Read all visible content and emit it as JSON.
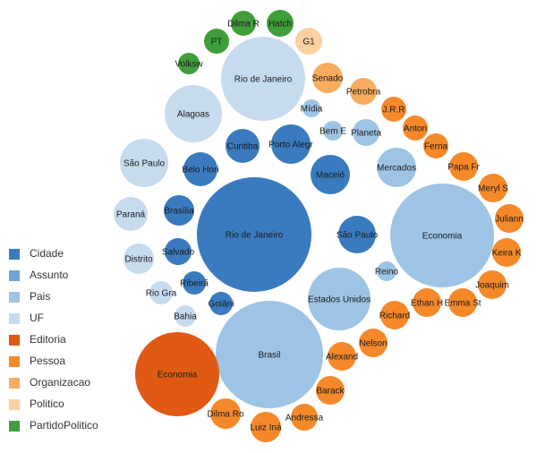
{
  "chart_data": {
    "type": "bubble",
    "colors": {
      "Cidade": "#3a7bbf",
      "Assunto": "#6fa4d6",
      "Pais": "#9ec4e5",
      "UF": "#c7dbef",
      "Editoria": "#e05a14",
      "Pessoa": "#f5892a",
      "Organizacao": "#f9ac5e",
      "Politico": "#fcd0a0",
      "PartidoPolitico": "#3f9e3a"
    },
    "legend": [
      {
        "label": "Cidade",
        "category": "Cidade"
      },
      {
        "label": "Assunto",
        "category": "Assunto"
      },
      {
        "label": "Pais",
        "category": "Pais"
      },
      {
        "label": "UF",
        "category": "UF"
      },
      {
        "label": "Editoria",
        "category": "Editoria"
      },
      {
        "label": "Pessoa",
        "category": "Pessoa"
      },
      {
        "label": "Organizacao",
        "category": "Organizacao"
      },
      {
        "label": "Politico",
        "category": "Politico"
      },
      {
        "label": "PartidoPolitico",
        "category": "PartidoPolitico"
      }
    ],
    "bubbles": [
      {
        "label": "Rio de Janeiro",
        "category": "Cidade",
        "value": 64
      },
      {
        "label": "Brasil",
        "category": "Pais",
        "value": 60
      },
      {
        "label": "Economia",
        "category": "Pais",
        "value": 58
      },
      {
        "label": "Economia",
        "category": "Editoria",
        "value": 47
      },
      {
        "label": "Rio de Janeiro",
        "category": "UF",
        "value": 47
      },
      {
        "label": "Estados Unidos",
        "category": "Pais",
        "value": 35
      },
      {
        "label": "Alagoas",
        "category": "UF",
        "value": 32
      },
      {
        "label": "São Paulo",
        "category": "UF",
        "value": 27
      },
      {
        "label": "Porto Alegr",
        "category": "Cidade",
        "value": 22
      },
      {
        "label": "Maceió",
        "category": "Cidade",
        "value": 22
      },
      {
        "label": "Mercados",
        "category": "Pais",
        "value": 22
      },
      {
        "label": "São Paulo",
        "category": "Cidade",
        "value": 21
      },
      {
        "label": "Curitiba",
        "category": "Cidade",
        "value": 19
      },
      {
        "label": "Belo Hori",
        "category": "Cidade",
        "value": 19
      },
      {
        "label": "Paraná",
        "category": "UF",
        "value": 19
      },
      {
        "label": "Brasília",
        "category": "Cidade",
        "value": 17
      },
      {
        "label": "Distrito",
        "category": "UF",
        "value": 17
      },
      {
        "label": "Salvado",
        "category": "Cidade",
        "value": 15
      },
      {
        "label": "Andressa",
        "category": "Pessoa",
        "value": 15
      },
      {
        "label": "Planeta",
        "category": "Pais",
        "value": 15
      },
      {
        "label": "Ribeirã",
        "category": "Cidade",
        "value": 13
      },
      {
        "label": "Goiâni",
        "category": "Cidade",
        "value": 13
      },
      {
        "label": "Rio Gra",
        "category": "UF",
        "value": 13
      },
      {
        "label": "Bahia",
        "category": "UF",
        "value": 12
      },
      {
        "label": "Reino",
        "category": "Pais",
        "value": 11
      },
      {
        "label": "Bem E",
        "category": "Pais",
        "value": 11
      },
      {
        "label": "Mídia",
        "category": "Pais",
        "value": 10
      },
      {
        "label": "Senado",
        "category": "Organizacao",
        "value": 17
      },
      {
        "label": "Petrobra",
        "category": "Organizacao",
        "value": 15
      },
      {
        "label": "G1",
        "category": "Politico",
        "value": 15
      },
      {
        "label": "PT",
        "category": "PartidoPolitico",
        "value": 14
      },
      {
        "label": "Dilma R",
        "category": "PartidoPolitico",
        "value": 14
      },
      {
        "label": "Hatch",
        "category": "PartidoPolitico",
        "value": 15
      },
      {
        "label": "Volksw",
        "category": "PartidoPolitico",
        "value": 12
      },
      {
        "label": "Dilma Ro",
        "category": "Pessoa",
        "value": 17
      },
      {
        "label": "Luiz Iná",
        "category": "Pessoa",
        "value": 17
      },
      {
        "label": "Barack",
        "category": "Pessoa",
        "value": 16
      },
      {
        "label": "Alexand",
        "category": "Pessoa",
        "value": 16
      },
      {
        "label": "Nelson",
        "category": "Pessoa",
        "value": 16
      },
      {
        "label": "Richard",
        "category": "Pessoa",
        "value": 16
      },
      {
        "label": "Ethan H",
        "category": "Pessoa",
        "value": 16
      },
      {
        "label": "Emma St",
        "category": "Pessoa",
        "value": 16
      },
      {
        "label": "Joaquim",
        "category": "Pessoa",
        "value": 16
      },
      {
        "label": "Keira K",
        "category": "Pessoa",
        "value": 16
      },
      {
        "label": "Juliann",
        "category": "Pessoa",
        "value": 16
      },
      {
        "label": "Meryl S",
        "category": "Pessoa",
        "value": 16
      },
      {
        "label": "Papa Fr",
        "category": "Pessoa",
        "value": 16
      },
      {
        "label": "Ferna",
        "category": "Pessoa",
        "value": 14
      },
      {
        "label": "Anton",
        "category": "Pessoa",
        "value": 14
      },
      {
        "label": "J.R.R",
        "category": "Pessoa",
        "value": 14
      }
    ]
  }
}
